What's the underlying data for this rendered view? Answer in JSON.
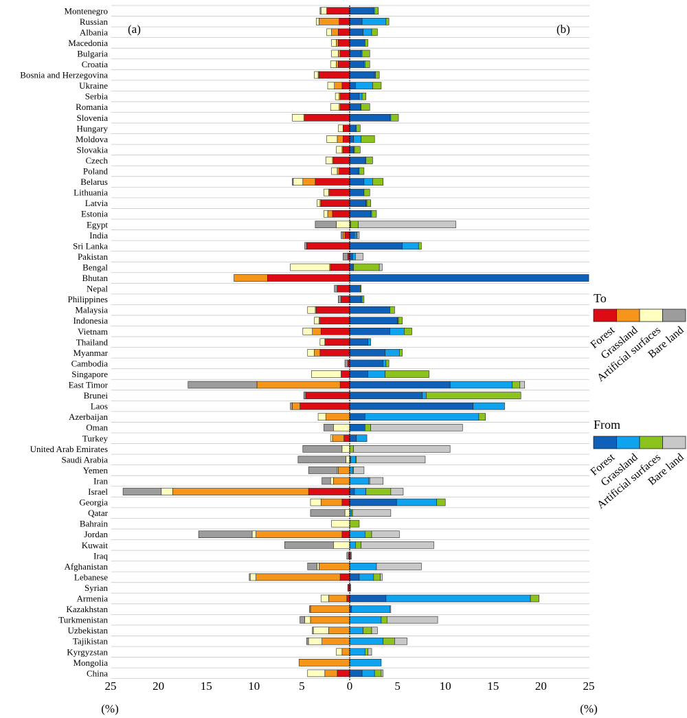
{
  "chart_data": {
    "type": "bar",
    "orientation": "horizontal",
    "stacked": true,
    "diverging": true,
    "panels": [
      "(a)",
      "(b)"
    ],
    "xlabel_left": "(%)",
    "xlabel_right": "(%)",
    "xlim_left": [
      25,
      0
    ],
    "xlim_right": [
      0,
      25
    ],
    "xticks": [
      "25",
      "20",
      "15",
      "10",
      "5",
      "0",
      "5",
      "10",
      "15",
      "20",
      "25"
    ],
    "grid": "horizontal",
    "legend_to": {
      "title": "To",
      "placement": "right",
      "entries": [
        "Forest",
        "Grassland",
        "Artificial surfaces",
        "Bare land"
      ],
      "colors": [
        "#dd0b14",
        "#f5951a",
        "#ffffc0",
        "#9c9c9c"
      ]
    },
    "legend_from": {
      "title": "From",
      "placement": "right",
      "entries": [
        "Forest",
        "Grassland",
        "Artificial surfaces",
        "Bare land"
      ],
      "colors": [
        "#0f60b8",
        "#0fa3ef",
        "#8cc21e",
        "#c8c8c8"
      ]
    },
    "countries": [
      "Montenegro",
      "Russian",
      "Albania",
      "Macedonia",
      "Bulgaria",
      "Croatia",
      "Bosnia and Herzegovina",
      "Ukraine",
      "Serbia",
      "Romania",
      "Slovenia",
      "Hungary",
      "Moldova",
      "Slovakia",
      "Czech",
      "Poland",
      "Belarus",
      "Lithuania",
      "Latvia",
      "Estonia",
      "Egypt",
      "India",
      "Sri Lanka",
      "Pakistan",
      "Bengal",
      "Bhutan",
      "Nepal",
      "Philippines",
      "Malaysia",
      "Indonesia",
      "Vietnam",
      "Thailand",
      "Myanmar",
      "Cambodia",
      "Singapore",
      "East Timor",
      "Brunei",
      "Laos",
      "Azerbaijan",
      "Oman",
      "Turkey",
      "United Arab Emirates",
      "Saudi Arabia",
      "Yemen",
      "Iran",
      "Israel",
      "Georgia",
      "Qatar",
      "Bahrain",
      "Jordan",
      "Kuwait",
      "Iraq",
      "Afghanistan",
      "Lebanese",
      "Syrian",
      "Armenia",
      "Kazakhstan",
      "Turkmenistan",
      "Uzbekistan",
      "Tajikistan",
      "Kyrgyzstan",
      "Mongolia",
      "China"
    ],
    "to": [
      [
        2.4,
        0.0,
        0.6,
        0.1
      ],
      [
        1.1,
        2.1,
        0.3,
        0.0
      ],
      [
        1.2,
        0.7,
        0.5,
        0.0
      ],
      [
        1.2,
        0.2,
        0.5,
        0.0
      ],
      [
        1.0,
        0.2,
        0.7,
        0.0
      ],
      [
        1.2,
        0.2,
        0.6,
        0.0
      ],
      [
        3.2,
        0.1,
        0.4,
        0.0
      ],
      [
        0.8,
        0.8,
        0.7,
        0.0
      ],
      [
        1.0,
        0.1,
        0.4,
        0.0
      ],
      [
        1.0,
        0.1,
        0.9,
        0.0
      ],
      [
        4.7,
        0.1,
        1.2,
        0.0
      ],
      [
        0.7,
        0.0,
        0.5,
        0.0
      ],
      [
        0.7,
        0.6,
        1.1,
        0.0
      ],
      [
        0.7,
        0.1,
        0.6,
        0.0
      ],
      [
        1.7,
        0.1,
        0.7,
        0.0
      ],
      [
        1.1,
        0.2,
        0.6,
        0.0
      ],
      [
        3.6,
        1.3,
        1.0,
        0.1
      ],
      [
        2.1,
        0.1,
        0.5,
        0.0
      ],
      [
        3.0,
        0.1,
        0.3,
        0.0
      ],
      [
        1.8,
        0.5,
        0.4,
        0.0
      ],
      [
        0.0,
        0.0,
        1.4,
        2.2
      ],
      [
        0.5,
        0.2,
        0.0,
        0.2
      ],
      [
        4.5,
        0.0,
        0.0,
        0.2
      ],
      [
        0.2,
        0.0,
        0.0,
        0.5
      ],
      [
        2.0,
        0.1,
        4.1,
        0.0
      ],
      [
        8.6,
        3.5,
        0.0,
        0.0
      ],
      [
        1.3,
        0.0,
        0.0,
        0.3
      ],
      [
        0.9,
        0.0,
        0.0,
        0.3
      ],
      [
        3.5,
        0.1,
        0.8,
        0.0
      ],
      [
        3.1,
        0.1,
        0.5,
        0.0
      ],
      [
        3.0,
        0.9,
        1.0,
        0.0
      ],
      [
        2.6,
        0.0,
        0.5,
        0.0
      ],
      [
        3.1,
        0.6,
        0.7,
        0.0
      ],
      [
        0.2,
        0.0,
        0.0,
        0.3
      ],
      [
        0.9,
        0.0,
        3.1,
        0.0
      ],
      [
        1.0,
        8.7,
        0.0,
        7.2
      ],
      [
        4.6,
        0.0,
        0.0,
        0.2
      ],
      [
        5.2,
        0.8,
        0.0,
        0.2
      ],
      [
        0.0,
        2.5,
        0.8,
        0.0
      ],
      [
        0.0,
        0.0,
        1.7,
        1.0
      ],
      [
        0.6,
        1.2,
        0.2,
        0.0
      ],
      [
        0.0,
        0.0,
        0.8,
        4.1
      ],
      [
        0.0,
        0.0,
        0.4,
        5.0
      ],
      [
        0.0,
        1.2,
        0.1,
        3.0
      ],
      [
        0.0,
        1.7,
        0.3,
        0.9
      ],
      [
        4.3,
        14.2,
        1.2,
        4.0
      ],
      [
        0.8,
        2.2,
        1.1,
        0.0
      ],
      [
        0.0,
        0.0,
        0.5,
        3.6
      ],
      [
        0.0,
        0.0,
        1.9,
        0.0
      ],
      [
        0.8,
        9.0,
        0.4,
        5.6
      ],
      [
        0.0,
        0.0,
        1.7,
        5.1
      ],
      [
        0.1,
        0.0,
        0.0,
        0.2
      ],
      [
        0.0,
        3.2,
        0.2,
        1.0
      ],
      [
        1.0,
        8.8,
        0.6,
        0.1
      ],
      [
        0.2,
        0.0,
        0.0,
        0.0
      ],
      [
        0.3,
        1.9,
        0.8,
        0.0
      ],
      [
        0.0,
        4.1,
        0.0,
        0.1
      ],
      [
        0.0,
        4.1,
        0.6,
        0.5
      ],
      [
        0.0,
        2.2,
        1.6,
        0.1
      ],
      [
        0.0,
        2.9,
        1.4,
        0.2
      ],
      [
        0.0,
        0.8,
        0.6,
        0.0
      ],
      [
        0.0,
        5.3,
        0.0,
        0.0
      ],
      [
        1.3,
        1.3,
        1.8,
        0.0
      ]
    ],
    "from": [
      [
        2.5,
        0.1,
        0.4,
        0.0
      ],
      [
        1.3,
        2.5,
        0.3,
        0.0
      ],
      [
        1.4,
        0.9,
        0.6,
        0.0
      ],
      [
        1.6,
        0.0,
        0.3,
        0.0
      ],
      [
        1.2,
        0.1,
        0.8,
        0.0
      ],
      [
        1.5,
        0.1,
        0.5,
        0.0
      ],
      [
        2.6,
        0.1,
        0.4,
        0.0
      ],
      [
        0.6,
        1.8,
        0.9,
        0.0
      ],
      [
        1.0,
        0.3,
        0.4,
        0.0
      ],
      [
        1.1,
        0.1,
        0.9,
        0.0
      ],
      [
        4.2,
        0.1,
        0.8,
        0.0
      ],
      [
        0.6,
        0.1,
        0.4,
        0.0
      ],
      [
        0.4,
        0.8,
        1.4,
        0.0
      ],
      [
        0.4,
        0.1,
        0.6,
        0.0
      ],
      [
        1.6,
        0.1,
        0.7,
        0.0
      ],
      [
        0.9,
        0.1,
        0.5,
        0.0
      ],
      [
        1.5,
        0.9,
        1.1,
        0.0
      ],
      [
        1.5,
        0.0,
        0.6,
        0.0
      ],
      [
        1.7,
        0.1,
        0.4,
        0.0
      ],
      [
        2.2,
        0.1,
        0.5,
        0.0
      ],
      [
        0.0,
        0.1,
        0.8,
        10.2
      ],
      [
        0.5,
        0.2,
        0.1,
        0.2
      ],
      [
        5.5,
        1.7,
        0.3,
        0.0
      ],
      [
        0.3,
        0.3,
        0.0,
        0.8
      ],
      [
        0.3,
        0.1,
        2.7,
        0.3
      ],
      [
        25.0,
        0.0,
        0.0,
        0.0
      ],
      [
        1.1,
        0.0,
        0.1,
        0.0
      ],
      [
        1.2,
        0.1,
        0.2,
        0.0
      ],
      [
        4.2,
        0.0,
        0.5,
        0.0
      ],
      [
        5.0,
        0.1,
        0.4,
        0.0
      ],
      [
        4.2,
        1.5,
        0.8,
        0.0
      ],
      [
        1.9,
        0.3,
        0.0,
        0.0
      ],
      [
        3.7,
        1.5,
        0.3,
        0.0
      ],
      [
        3.5,
        0.3,
        0.3,
        0.0
      ],
      [
        1.9,
        1.8,
        4.6,
        0.0
      ],
      [
        10.5,
        6.5,
        0.8,
        0.5
      ],
      [
        7.6,
        0.4,
        9.9,
        0.0
      ],
      [
        12.9,
        3.3,
        0.0,
        0.0
      ],
      [
        1.6,
        11.9,
        0.7,
        0.0
      ],
      [
        1.6,
        0.0,
        0.6,
        9.6
      ],
      [
        0.7,
        1.1,
        0.0,
        0.0
      ],
      [
        0.0,
        0.0,
        0.4,
        10.1
      ],
      [
        0.1,
        0.5,
        0.1,
        7.2
      ],
      [
        0.0,
        0.3,
        0.1,
        1.1
      ],
      [
        0.0,
        2.0,
        0.1,
        1.4
      ],
      [
        0.5,
        1.2,
        2.6,
        1.3
      ],
      [
        4.9,
        4.2,
        0.9,
        0.0
      ],
      [
        0.0,
        0.2,
        0.1,
        4.0
      ],
      [
        0.0,
        0.0,
        1.0,
        0.0
      ],
      [
        0.0,
        1.6,
        0.7,
        2.9
      ],
      [
        0.0,
        0.6,
        0.6,
        7.6
      ],
      [
        0.1,
        0.0,
        0.0,
        0.1
      ],
      [
        0.0,
        2.8,
        0.0,
        4.7
      ],
      [
        1.0,
        1.5,
        0.7,
        0.2
      ],
      [
        0.1,
        0.0,
        0.0,
        0.0
      ],
      [
        3.8,
        15.1,
        0.9,
        0.0
      ],
      [
        0.2,
        4.0,
        0.0,
        0.1
      ],
      [
        0.0,
        3.3,
        0.6,
        5.3
      ],
      [
        0.0,
        1.4,
        0.9,
        0.6
      ],
      [
        0.0,
        3.5,
        1.2,
        1.3
      ],
      [
        0.0,
        1.6,
        0.3,
        0.4
      ],
      [
        0.0,
        3.3,
        0.0,
        0.0
      ],
      [
        1.3,
        1.3,
        0.7,
        0.2
      ]
    ]
  }
}
